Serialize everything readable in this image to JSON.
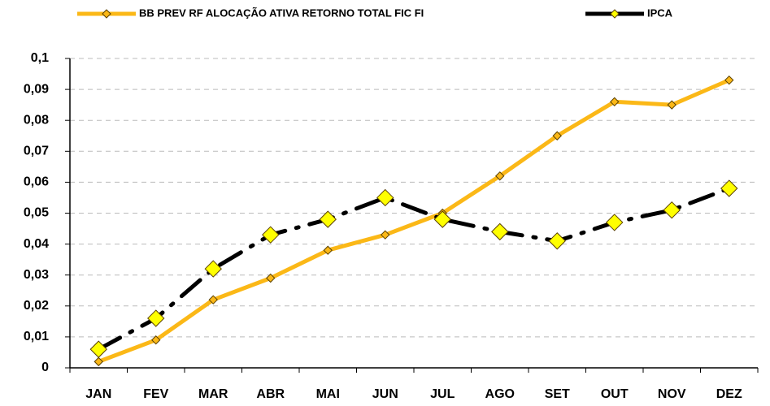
{
  "chart_data": {
    "type": "line",
    "categories": [
      "JAN",
      "FEV",
      "MAR",
      "ABR",
      "MAI",
      "JUN",
      "JUL",
      "AGO",
      "SET",
      "OUT",
      "NOV",
      "DEZ"
    ],
    "series": [
      {
        "name": "BB PREV RF ALOCAÇÃO ATIVA RETORNO TOTAL FIC FI",
        "color": "#fbb817",
        "values": [
          0.002,
          0.009,
          0.022,
          0.029,
          0.038,
          0.043,
          0.05,
          0.062,
          0.075,
          0.086,
          0.085,
          0.093
        ]
      },
      {
        "name": "IPCA",
        "color": "#000000",
        "values": [
          0.006,
          0.016,
          0.032,
          0.043,
          0.048,
          0.055,
          0.048,
          0.044,
          0.041,
          0.047,
          0.051,
          0.058
        ]
      }
    ],
    "ylim": [
      0,
      0.1
    ],
    "yticks": [
      0,
      {
        "value": 0.01,
        "label": "0,01"
      },
      {
        "value": 0.02,
        "label": "0,02"
      },
      {
        "value": 0.03,
        "label": "0,03"
      },
      {
        "value": 0.04,
        "label": "0,04"
      },
      {
        "value": 0.05,
        "label": "0,05"
      },
      {
        "value": 0.06,
        "label": "0,06"
      },
      {
        "value": 0.07,
        "label": "0,07"
      },
      {
        "value": 0.08,
        "label": "0,08"
      },
      {
        "value": 0.09,
        "label": "0,09"
      },
      {
        "value": 0.1,
        "label": "0,1"
      }
    ],
    "grid": true
  }
}
